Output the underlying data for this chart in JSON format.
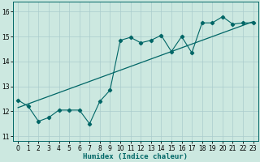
{
  "title": "",
  "xlabel": "Humidex (Indice chaleur)",
  "xlim": [
    -0.5,
    23.5
  ],
  "ylim": [
    10.8,
    16.4
  ],
  "yticks": [
    11,
    12,
    13,
    14,
    15,
    16
  ],
  "xticks": [
    0,
    1,
    2,
    3,
    4,
    5,
    6,
    7,
    8,
    9,
    10,
    11,
    12,
    13,
    14,
    15,
    16,
    17,
    18,
    19,
    20,
    21,
    22,
    23
  ],
  "bg_color": "#cce8e0",
  "grid_color": "#aacccc",
  "line_color": "#006666",
  "line_x": [
    0,
    1,
    2,
    3,
    4,
    5,
    6,
    7,
    8,
    9,
    10,
    11,
    12,
    13,
    14,
    15,
    16,
    17,
    18,
    19,
    20,
    21,
    22,
    23
  ],
  "line_y": [
    12.45,
    12.2,
    11.6,
    11.75,
    12.05,
    12.05,
    12.05,
    11.5,
    12.4,
    12.85,
    14.85,
    14.97,
    14.75,
    14.85,
    15.05,
    14.4,
    15.0,
    14.35,
    15.55,
    15.55,
    15.8,
    15.5,
    15.55,
    15.55
  ],
  "trend_x": [
    0,
    23
  ],
  "trend_y": [
    12.15,
    15.6
  ]
}
